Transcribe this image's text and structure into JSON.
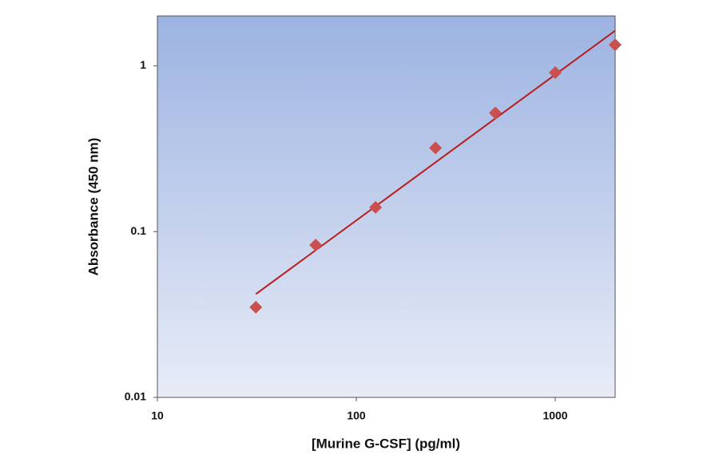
{
  "chart_data": {
    "type": "scatter",
    "x_label": "[Murine G-CSF] (pg/ml)",
    "y_label": "Absorbance (450 nm)",
    "x": [
      31.25,
      62.5,
      125,
      250,
      500,
      1000,
      2000
    ],
    "values": [
      0.035,
      0.083,
      0.14,
      0.32,
      0.52,
      0.91,
      1.34
    ],
    "color": "#c9504f",
    "fit": {
      "x": [
        31.25,
        2000
      ],
      "values": [
        0.042,
        1.63
      ],
      "color": "#b81c1c"
    },
    "xscale": "log",
    "yscale": "log",
    "xlim": [
      10,
      2000
    ],
    "ylim": [
      0.01,
      2
    ],
    "xticks": [
      10,
      100,
      1000
    ],
    "yticks": [
      0.01,
      0.1,
      1
    ]
  }
}
